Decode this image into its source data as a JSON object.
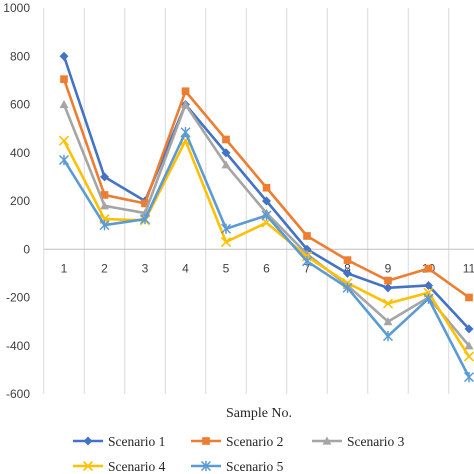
{
  "chart_data": {
    "type": "line",
    "xlabel": "Sample No.",
    "ylabel": "",
    "ylim": [
      -600,
      1000
    ],
    "y_ticks": [
      "1000",
      "800",
      "600",
      "400",
      "200",
      "0",
      "-200",
      "-400",
      "-600"
    ],
    "categories": [
      "1",
      "2",
      "3",
      "4",
      "5",
      "6",
      "7",
      "8",
      "9",
      "10",
      "11"
    ],
    "grid": "vertical",
    "legend_position": "bottom",
    "series": [
      {
        "name": "Scenario 1",
        "color": "#4472c4",
        "marker": "diamond",
        "values": [
          800,
          300,
          200,
          600,
          400,
          200,
          0,
          -100,
          -160,
          -150,
          -330
        ]
      },
      {
        "name": "Scenario 2",
        "color": "#ed7d31",
        "marker": "square",
        "values": [
          705,
          225,
          190,
          655,
          455,
          255,
          55,
          -45,
          -130,
          -80,
          -200
        ]
      },
      {
        "name": "Scenario 3",
        "color": "#a5a5a5",
        "marker": "triangle",
        "values": [
          600,
          180,
          150,
          600,
          350,
          150,
          -20,
          -150,
          -300,
          -200,
          -400
        ]
      },
      {
        "name": "Scenario 4",
        "color": "#ffc000",
        "marker": "x",
        "values": [
          450,
          125,
          120,
          450,
          30,
          110,
          -30,
          -140,
          -225,
          -180,
          -445
        ]
      },
      {
        "name": "Scenario 5",
        "color": "#5b9bd5",
        "marker": "star",
        "values": [
          370,
          100,
          125,
          485,
          85,
          140,
          -50,
          -160,
          -360,
          -205,
          -530
        ]
      }
    ]
  }
}
